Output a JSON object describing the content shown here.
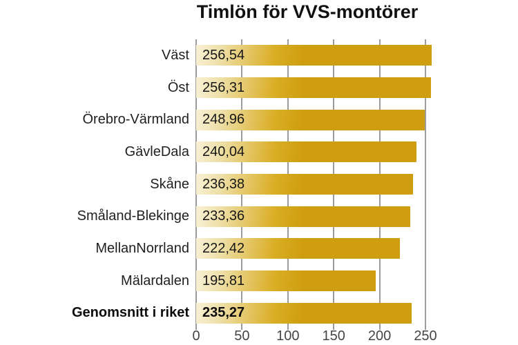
{
  "chart_data": {
    "type": "bar",
    "orientation": "horizontal",
    "title": "Timlön för VVS-montörer",
    "categories": [
      "Väst",
      "Öst",
      "Örebro-Värmland",
      "GävleDala",
      "Skåne",
      "Småland-Blekinge",
      "MellanNorrland",
      "Mälardalen",
      "Genomsnitt i riket"
    ],
    "values": [
      256.54,
      256.31,
      248.96,
      240.04,
      236.38,
      233.36,
      222.42,
      195.81,
      235.27
    ],
    "value_labels": [
      "256,54",
      "256,31",
      "248,96",
      "240,04",
      "236,38",
      "233,36",
      "222,42",
      "195,81",
      "235,27"
    ],
    "emphasized_category": "Genomsnitt i riket",
    "x_ticks": [
      0,
      50,
      100,
      150,
      200,
      250
    ],
    "xlim": [
      0,
      347
    ],
    "xlabel": "",
    "ylabel": "",
    "grid": "vertical-gridlines-only",
    "legend": "none"
  },
  "colors": {
    "background": "#ffffff",
    "bar_gradient_start": "#f9f1d6",
    "bar_gradient_end": "#cf9e10",
    "gridline": "#9b9b9b",
    "axis_text": "#454545",
    "label_text": "#1f1f1f",
    "title_text": "#111111"
  }
}
